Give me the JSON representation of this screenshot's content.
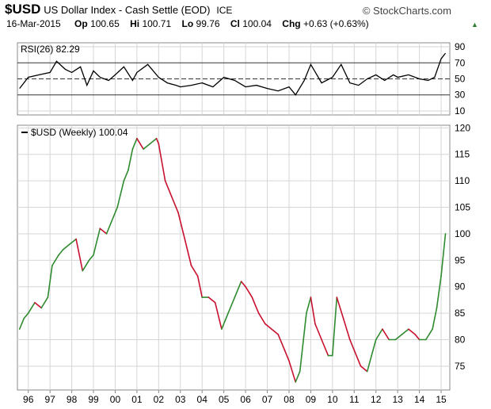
{
  "header": {
    "symbol": "$USD",
    "description": "US Dollar Index - Cash Settle (EOD)",
    "exchange": "ICE",
    "brand": "© StockCharts.com",
    "date": "16-Mar-2015",
    "open_label": "Op",
    "open": "100.65",
    "high_label": "Hi",
    "high": "100.71",
    "low_label": "Lo",
    "low": "99.76",
    "close_label": "Cl",
    "close": "100.04",
    "chg_label": "Chg",
    "chg": "+0.63 (+0.63%)",
    "colors": {
      "up": "#2e8b2e",
      "down": "#c8102e",
      "line": "#000000",
      "grid": "#d6d6d6"
    }
  },
  "chart_data": [
    {
      "type": "line",
      "legend": "RSI(26) 82.29",
      "legend_placement": "top-left",
      "ylim": [
        5,
        95
      ],
      "yticks": [
        10,
        30,
        50,
        70,
        90
      ],
      "reference_lines": [
        30,
        50,
        70
      ],
      "series": [
        {
          "x": [
            1995.6,
            1996.0,
            1996.5,
            1997.0,
            1997.3,
            1997.7,
            1998.0,
            1998.4,
            1998.7,
            1999.0,
            1999.3,
            1999.7,
            2000.0,
            2000.4,
            2000.8,
            2001.0,
            2001.5,
            2002.0,
            2002.4,
            2002.8,
            2003.0,
            2003.5,
            2004.0,
            2004.5,
            2005.0,
            2005.5,
            2006.0,
            2006.5,
            2007.0,
            2007.5,
            2008.0,
            2008.3,
            2008.7,
            2009.0,
            2009.5,
            2010.0,
            2010.4,
            2010.8,
            2011.2,
            2011.6,
            2012.0,
            2012.4,
            2012.8,
            2013.0,
            2013.5,
            2014.0,
            2014.4,
            2014.7,
            2015.0,
            2015.2
          ],
          "y": [
            38,
            52,
            55,
            58,
            72,
            62,
            58,
            65,
            42,
            60,
            52,
            48,
            55,
            65,
            48,
            58,
            68,
            52,
            45,
            42,
            40,
            42,
            45,
            40,
            52,
            48,
            40,
            42,
            38,
            35,
            40,
            30,
            48,
            68,
            45,
            52,
            68,
            45,
            42,
            50,
            55,
            48,
            55,
            52,
            55,
            50,
            48,
            52,
            75,
            82
          ]
        }
      ]
    },
    {
      "type": "line",
      "legend": "$USD (Weekly) 100.04",
      "legend_placement": "top-left",
      "ylim": [
        70.5,
        120.5
      ],
      "yticks": [
        75,
        80,
        85,
        90,
        95,
        100,
        105,
        110,
        115,
        120
      ],
      "xticks": [
        "96",
        "97",
        "98",
        "99",
        "00",
        "01",
        "02",
        "03",
        "04",
        "05",
        "06",
        "07",
        "08",
        "09",
        "10",
        "11",
        "12",
        "13",
        "14",
        "15"
      ],
      "xtick_values": [
        1996,
        1997,
        1998,
        1999,
        2000,
        2001,
        2002,
        2003,
        2004,
        2005,
        2006,
        2007,
        2008,
        2009,
        2010,
        2011,
        2012,
        2013,
        2014,
        2015
      ],
      "series": [
        {
          "x": [
            1995.6,
            1995.8,
            1996.0,
            1996.3,
            1996.6,
            1996.9,
            1997.1,
            1997.4,
            1997.6,
            1997.9,
            1998.2,
            1998.5,
            1998.8,
            1999.0,
            1999.3,
            1999.6,
            1999.8,
            2000.1,
            2000.4,
            2000.6,
            2000.8,
            2001.0,
            2001.3,
            2001.6,
            2001.9,
            2002.0,
            2002.3,
            2002.6,
            2002.9,
            2003.2,
            2003.5,
            2003.8,
            2004.0,
            2004.3,
            2004.6,
            2004.9,
            2005.2,
            2005.5,
            2005.8,
            2006.0,
            2006.3,
            2006.6,
            2006.9,
            2007.2,
            2007.5,
            2007.8,
            2008.0,
            2008.3,
            2008.5,
            2008.8,
            2009.0,
            2009.2,
            2009.5,
            2009.8,
            2010.0,
            2010.2,
            2010.5,
            2010.8,
            2011.0,
            2011.3,
            2011.6,
            2011.8,
            2012.0,
            2012.3,
            2012.6,
            2012.9,
            2013.2,
            2013.5,
            2013.8,
            2014.0,
            2014.3,
            2014.6,
            2014.8,
            2015.0,
            2015.2
          ],
          "y": [
            82,
            84,
            85,
            87,
            86,
            88,
            94,
            96,
            97,
            98,
            99,
            93,
            95,
            96,
            101,
            100,
            102,
            105,
            110,
            112,
            116,
            118,
            116,
            117,
            118,
            117,
            110,
            107,
            104,
            99,
            94,
            92,
            88,
            88,
            87,
            82,
            85,
            88,
            91,
            90,
            88,
            85,
            83,
            82,
            81,
            78,
            76,
            72,
            74,
            85,
            88,
            83,
            80,
            77,
            77,
            88,
            84,
            80,
            78,
            75,
            74,
            77,
            80,
            82,
            80,
            80,
            81,
            82,
            81,
            80,
            80,
            82,
            86,
            92,
            100
          ]
        }
      ]
    }
  ]
}
